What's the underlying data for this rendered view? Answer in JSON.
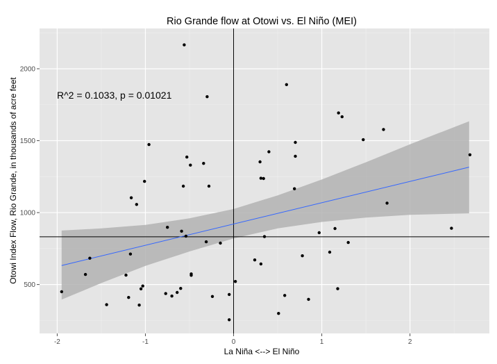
{
  "chart_data": {
    "type": "scatter",
    "title": "Rio Grande flow at Otowi vs. El Niño (MEI)",
    "xlabel": "La Niña <--> El Niño",
    "ylabel": "Otowi Index Flow, Rio Grande, in thousands of acre feet",
    "annotation": "R^2 = 0.1033, p = 0.01021",
    "xlim": [
      -2.2,
      2.9
    ],
    "ylim": [
      160,
      2280
    ],
    "x_ticks": [
      -2,
      -1,
      0,
      1,
      2
    ],
    "x_tick_labels": [
      "-2",
      "-1",
      "0",
      "1",
      "2"
    ],
    "y_ticks": [
      500,
      1000,
      1500,
      2000
    ],
    "y_tick_labels": [
      "500",
      "1000",
      "1500",
      "2000"
    ],
    "grid": true,
    "colors": {
      "panel": "#e5e5e5",
      "grid_major": "#ffffff",
      "grid_minor": "#f0f0f0",
      "points": "#000000",
      "fit_line": "#3366ff",
      "confidence_band": "#b3b3b3",
      "reference_lines": "#000000"
    },
    "reference_lines": {
      "vertical_x": 0,
      "horizontal_y": 832
    },
    "fit": {
      "x": [
        -1.95,
        2.67
      ],
      "y": [
        632,
        1316
      ],
      "band_x": [
        -1.95,
        -1.5,
        -1.0,
        -0.5,
        0.0,
        0.5,
        1.0,
        1.5,
        2.0,
        2.67
      ],
      "band_lower": [
        395,
        510,
        630,
        730,
        820,
        890,
        935,
        965,
        985,
        995
      ],
      "band_upper": [
        875,
        890,
        915,
        960,
        1025,
        1120,
        1230,
        1350,
        1475,
        1635
      ]
    },
    "points": [
      {
        "x": -1.95,
        "y": 450
      },
      {
        "x": -1.68,
        "y": 570
      },
      {
        "x": -1.63,
        "y": 683
      },
      {
        "x": -1.44,
        "y": 360
      },
      {
        "x": -1.22,
        "y": 565
      },
      {
        "x": -1.19,
        "y": 410
      },
      {
        "x": -1.17,
        "y": 712
      },
      {
        "x": -1.16,
        "y": 1103
      },
      {
        "x": -1.1,
        "y": 1057
      },
      {
        "x": -1.07,
        "y": 357
      },
      {
        "x": -1.05,
        "y": 470
      },
      {
        "x": -1.03,
        "y": 490
      },
      {
        "x": -1.01,
        "y": 1217
      },
      {
        "x": -0.96,
        "y": 1473
      },
      {
        "x": -0.77,
        "y": 437
      },
      {
        "x": -0.75,
        "y": 898
      },
      {
        "x": -0.7,
        "y": 420
      },
      {
        "x": -0.64,
        "y": 445
      },
      {
        "x": -0.6,
        "y": 473
      },
      {
        "x": -0.59,
        "y": 871
      },
      {
        "x": -0.57,
        "y": 1184
      },
      {
        "x": -0.56,
        "y": 2166
      },
      {
        "x": -0.54,
        "y": 836
      },
      {
        "x": -0.53,
        "y": 1386
      },
      {
        "x": -0.49,
        "y": 1330
      },
      {
        "x": -0.48,
        "y": 564
      },
      {
        "x": -0.48,
        "y": 574
      },
      {
        "x": -0.34,
        "y": 1342
      },
      {
        "x": -0.31,
        "y": 797
      },
      {
        "x": -0.3,
        "y": 1806
      },
      {
        "x": -0.28,
        "y": 1184
      },
      {
        "x": -0.24,
        "y": 417
      },
      {
        "x": -0.15,
        "y": 788
      },
      {
        "x": -0.05,
        "y": 431
      },
      {
        "x": -0.05,
        "y": 255
      },
      {
        "x": 0.02,
        "y": 521
      },
      {
        "x": 0.24,
        "y": 671
      },
      {
        "x": 0.3,
        "y": 1353
      },
      {
        "x": 0.31,
        "y": 643
      },
      {
        "x": 0.31,
        "y": 1239
      },
      {
        "x": 0.34,
        "y": 1237
      },
      {
        "x": 0.35,
        "y": 833
      },
      {
        "x": 0.4,
        "y": 1423
      },
      {
        "x": 0.51,
        "y": 299
      },
      {
        "x": 0.58,
        "y": 424
      },
      {
        "x": 0.6,
        "y": 1890
      },
      {
        "x": 0.69,
        "y": 1166
      },
      {
        "x": 0.7,
        "y": 1488
      },
      {
        "x": 0.7,
        "y": 1392
      },
      {
        "x": 0.78,
        "y": 700
      },
      {
        "x": 0.85,
        "y": 397
      },
      {
        "x": 0.97,
        "y": 860
      },
      {
        "x": 1.09,
        "y": 725
      },
      {
        "x": 1.15,
        "y": 889
      },
      {
        "x": 1.18,
        "y": 471
      },
      {
        "x": 1.19,
        "y": 1693
      },
      {
        "x": 1.23,
        "y": 1666
      },
      {
        "x": 1.3,
        "y": 792
      },
      {
        "x": 1.47,
        "y": 1507
      },
      {
        "x": 1.7,
        "y": 1578
      },
      {
        "x": 1.74,
        "y": 1066
      },
      {
        "x": 2.47,
        "y": 891
      },
      {
        "x": 2.68,
        "y": 1402
      }
    ]
  }
}
